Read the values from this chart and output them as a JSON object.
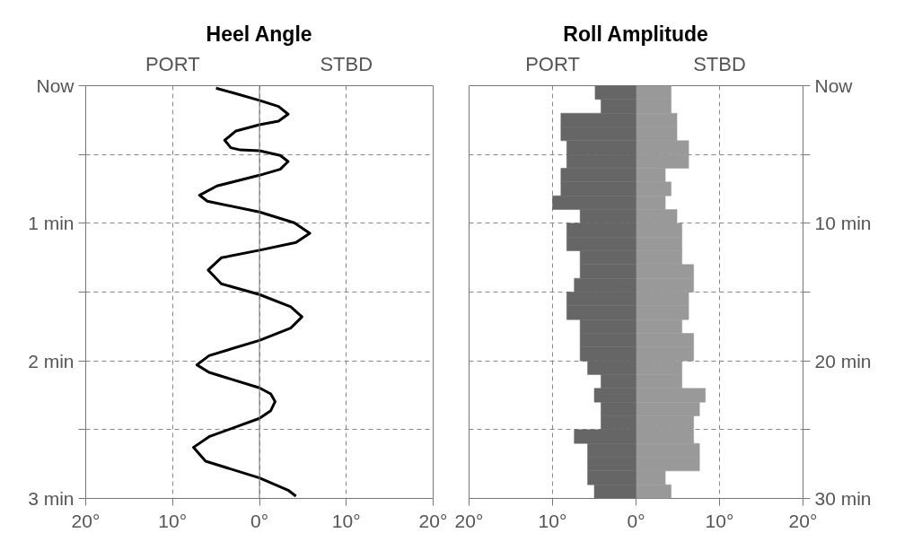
{
  "chart_data": [
    {
      "type": "line",
      "title": "Heel Angle",
      "annotations": [
        "PORT",
        "STBD"
      ],
      "orientation": "horizontal",
      "color": "#000000",
      "x": [
        0.018,
        0.051,
        0.107,
        0.151,
        0.207,
        0.258,
        0.284,
        0.329,
        0.396,
        0.451,
        0.467,
        0.473,
        0.507,
        0.551,
        0.607,
        0.651,
        0.729,
        0.796,
        0.84,
        0.918,
        0.996,
        1.073,
        1.14,
        1.196,
        1.251,
        1.34,
        1.44,
        1.518,
        1.607,
        1.68,
        1.762,
        1.851,
        1.962,
        2.029,
        2.084,
        2.196,
        2.24,
        2.296,
        2.362,
        2.418,
        2.551,
        2.629,
        2.729,
        2.851,
        2.94,
        2.984
      ],
      "values": [
        -5.0,
        -3.1,
        0,
        2.2,
        3.3,
        2.2,
        0,
        -2.7,
        -4.0,
        -3.3,
        -2.2,
        0,
        2.4,
        3.3,
        2.4,
        0,
        -4.9,
        -6.9,
        -6.0,
        0,
        4.0,
        5.8,
        4.2,
        0,
        -4.4,
        -5.9,
        -4.4,
        0,
        3.6,
        4.9,
        3.6,
        0,
        -5.8,
        -7.2,
        -5.8,
        0,
        1.3,
        1.8,
        1.3,
        0,
        -5.8,
        -7.6,
        -6.2,
        0,
        3.3,
        4.2
      ],
      "xlim": [
        -20,
        20
      ],
      "xticks": [
        {
          "value": -20,
          "label": "20°"
        },
        {
          "value": -10,
          "label": "10°"
        },
        {
          "value": 0,
          "label": "0°"
        },
        {
          "value": 10,
          "label": "10°"
        },
        {
          "value": 20,
          "label": "20°"
        }
      ],
      "ylim": [
        3,
        0
      ],
      "yticks": [
        {
          "value": 0,
          "label": "Now"
        },
        {
          "value": 0.5,
          "label": null
        },
        {
          "value": 1,
          "label": "1 min"
        },
        {
          "value": 1.5,
          "label": null
        },
        {
          "value": 2,
          "label": "2 min"
        },
        {
          "value": 2.5,
          "label": null
        },
        {
          "value": 3,
          "label": "3 min"
        }
      ],
      "grid": true,
      "ref_lines": [
        {
          "axis": "x",
          "value": 0,
          "label": null
        }
      ]
    },
    {
      "type": "bar",
      "title": "Roll Amplitude",
      "annotations": [
        "PORT",
        "STBD"
      ],
      "orientation": "horizontal",
      "stacked": true,
      "x": [
        0.5,
        1.5,
        2.5,
        3.5,
        4.5,
        5.5,
        6.5,
        7.5,
        8.5,
        9.5,
        10.5,
        11.5,
        12.5,
        13.5,
        14.5,
        15.5,
        16.5,
        17.5,
        18.5,
        19.5,
        20.5,
        21.5,
        22.5,
        23.5,
        24.5,
        25.5,
        26.5,
        27.5,
        28.5,
        29.5
      ],
      "series": [
        {
          "color": "#666666",
          "values": [
            -4.9,
            -4.2,
            -9.0,
            -9.0,
            -8.3,
            -8.3,
            -9.0,
            -9.0,
            -10.0,
            -6.7,
            -8.3,
            -8.3,
            -6.7,
            -6.7,
            -7.4,
            -8.3,
            -8.3,
            -6.7,
            -6.7,
            -6.7,
            -5.8,
            -4.2,
            -5.0,
            -4.2,
            -4.2,
            -7.4,
            -5.8,
            -5.8,
            -5.8,
            -5.0
          ]
        },
        {
          "color": "#999999",
          "values": [
            4.2,
            4.2,
            4.9,
            4.9,
            6.3,
            6.3,
            3.5,
            4.2,
            3.5,
            4.9,
            5.5,
            5.5,
            5.5,
            6.9,
            6.9,
            6.3,
            6.3,
            5.5,
            6.9,
            6.9,
            5.5,
            5.5,
            8.3,
            7.6,
            6.9,
            6.9,
            7.6,
            7.6,
            3.5,
            4.2
          ]
        }
      ],
      "xlim": [
        -20,
        20
      ],
      "xticks": [
        {
          "value": -20,
          "label": "20°"
        },
        {
          "value": -10,
          "label": "10°"
        },
        {
          "value": 0,
          "label": "0°"
        },
        {
          "value": 10,
          "label": "10°"
        },
        {
          "value": 20,
          "label": "20°"
        }
      ],
      "ylim": [
        30,
        0
      ],
      "yticks": [
        {
          "value": 0,
          "label": "Now"
        },
        {
          "value": 5,
          "label": null
        },
        {
          "value": 10,
          "label": "10 min"
        },
        {
          "value": 15,
          "label": null
        },
        {
          "value": 20,
          "label": "20 min"
        },
        {
          "value": 25,
          "label": null
        },
        {
          "value": 30,
          "label": "30 min"
        }
      ],
      "grid": true,
      "ref_lines": [
        {
          "axis": "x",
          "value": 0,
          "label": null
        }
      ]
    }
  ]
}
